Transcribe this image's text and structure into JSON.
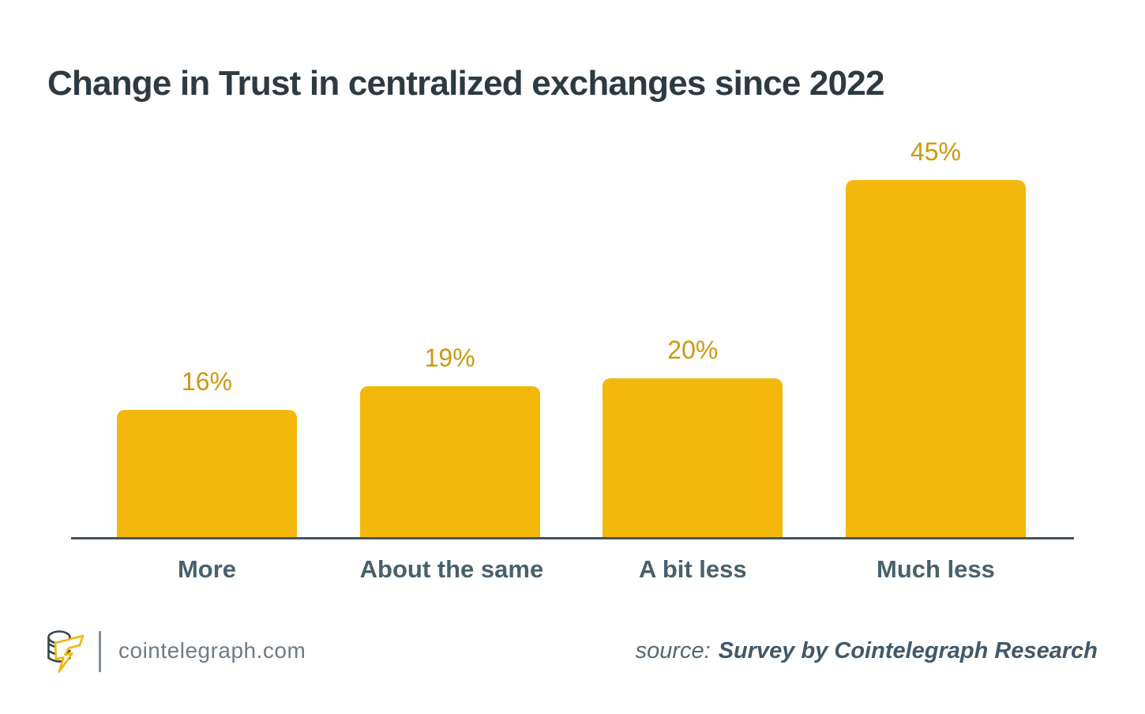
{
  "title": "Change in Trust in centralized exchanges since 2022",
  "chart_data": {
    "type": "bar",
    "title": "Change in Trust in centralized exchanges since 2022",
    "categories": [
      "More",
      "About the same",
      "A bit less",
      "Much less"
    ],
    "values": [
      16,
      19,
      20,
      45
    ],
    "value_labels": [
      "16%",
      "19%",
      "20%",
      "45%"
    ],
    "unit": "%",
    "xlabel": "",
    "ylabel": "",
    "ylim": [
      0,
      50
    ],
    "grid": false,
    "legend": false,
    "orientation": "vertical",
    "bar_color": "#F4B80C",
    "value_label_color": "#CD9712",
    "category_label_color": "#47606C",
    "axis_line_color": "#44545E"
  },
  "footer": {
    "logo_icon": "cointelegraph-coin-bolt-logo",
    "site": "cointelegraph.com",
    "source_prefix": "source:",
    "source_text": "Survey by Cointelegraph Research"
  }
}
